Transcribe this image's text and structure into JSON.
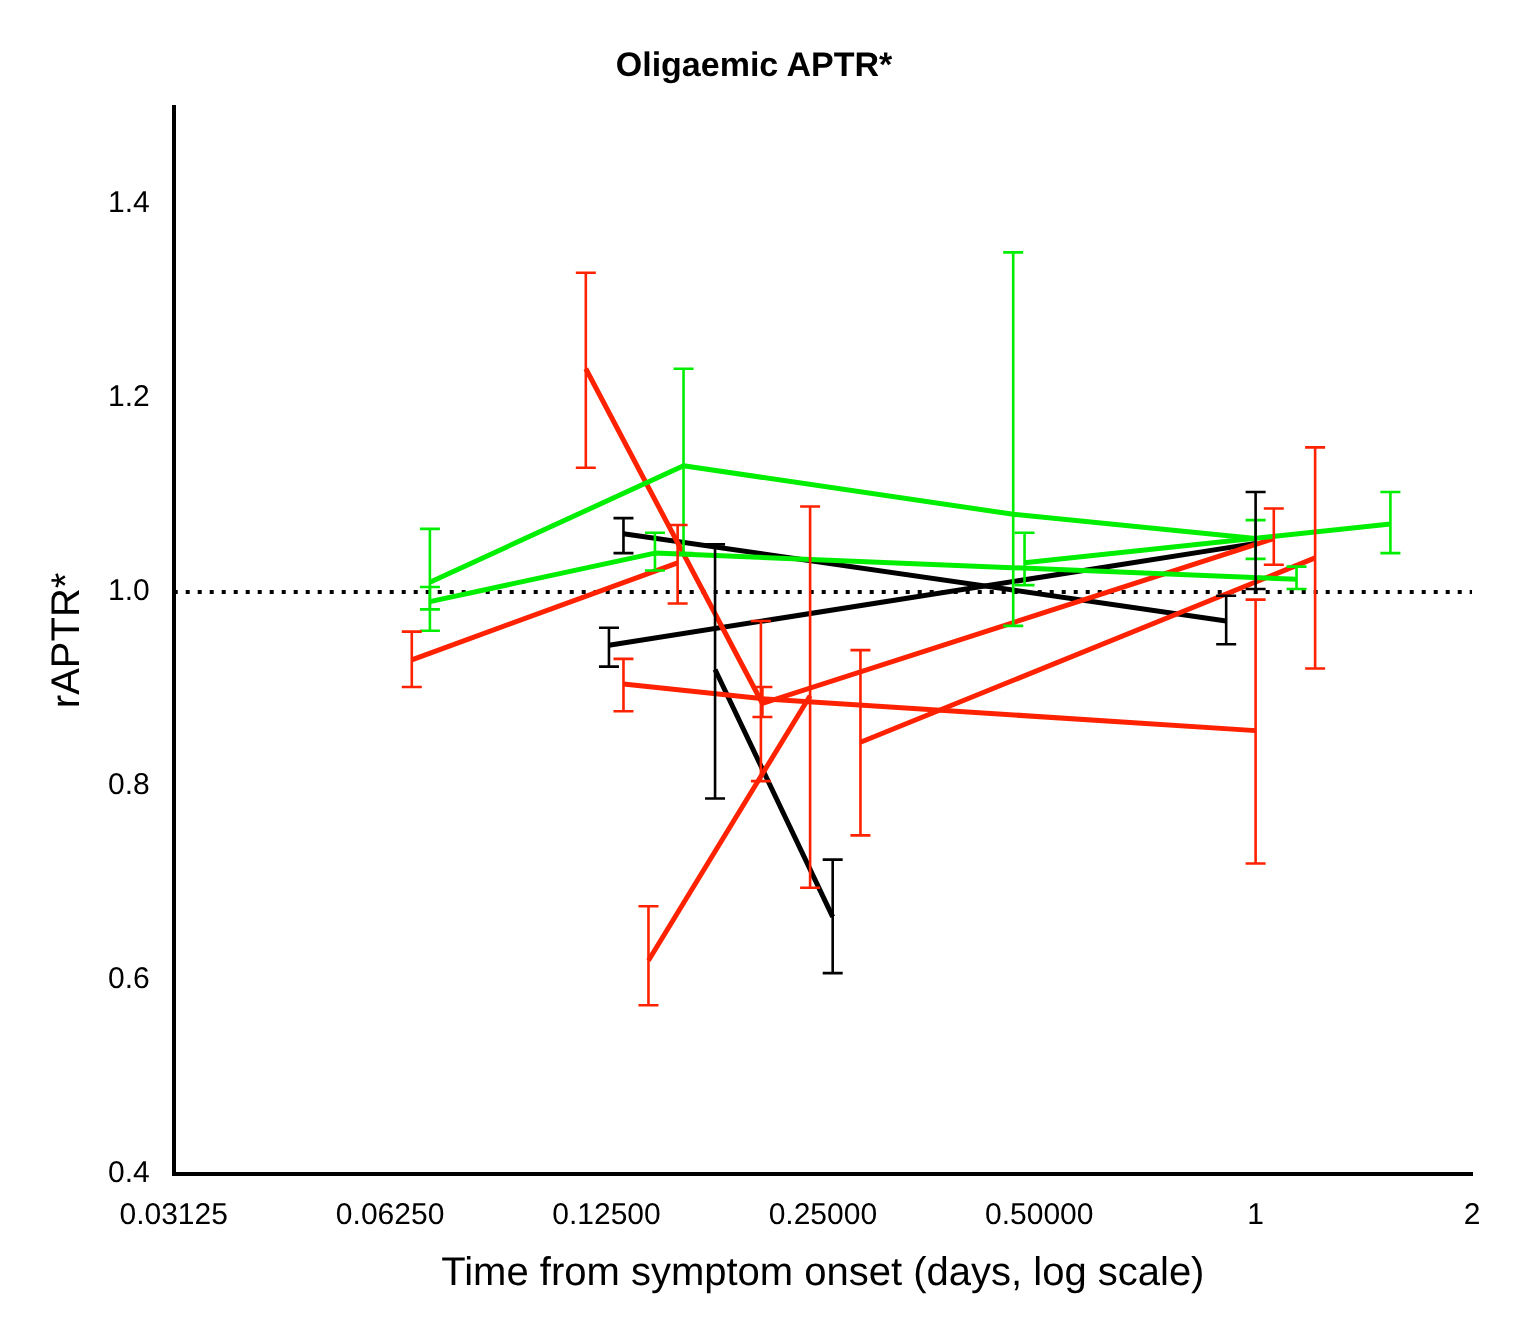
{
  "chart_data": {
    "type": "line",
    "title": "Oligaemic APTR*",
    "xlabel": "Time from symptom onset (days, log scale)",
    "ylabel": "rAPTR*",
    "log": "x",
    "xlim": [
      0.03125,
      2
    ],
    "xticks": [
      0.03125,
      {
        "value": 0.0625,
        "label": "0.06250"
      },
      {
        "value": 0.125,
        "label": "0.12500"
      },
      {
        "value": 0.25,
        "label": "0.25000"
      },
      {
        "value": 0.5,
        "label": "0.50000"
      },
      1,
      2
    ],
    "ylim": [
      0.4,
      1.5
    ],
    "yticks": [
      0.4,
      0.6,
      0.8,
      {
        "value": 1,
        "label": "1.0"
      },
      1.2,
      1.4
    ],
    "grid": false,
    "legend": false,
    "line_style": "solid",
    "ref_lines": [
      {
        "axis": "y",
        "value": 1,
        "color": "#000000",
        "line_style": "dotted"
      }
    ],
    "series": [
      {
        "color": "#00ee00",
        "x": [
          0.071,
          0.16,
          0.46,
          1.0
        ],
        "values": [
          1.01,
          1.13,
          1.08,
          1.055
        ],
        "errors": [
          [
            0.96,
            1.065
          ],
          [
            1.04,
            1.23
          ],
          [
            0.965,
            1.35
          ],
          [
            1.034,
            1.074
          ]
        ]
      },
      {
        "color": "#00ee00",
        "x": [
          0.071,
          0.146,
          1.14
        ],
        "values": [
          0.99,
          1.04,
          1.013
        ],
        "errors": [
          [
            0.982,
            1.005
          ],
          [
            1.022,
            1.061
          ],
          [
            1.003,
            1.026
          ]
        ]
      },
      {
        "color": "#00ee00",
        "x": [
          0.477,
          1.54
        ],
        "values": [
          1.03,
          1.07
        ],
        "errors": [
          [
            1.007,
            1.061
          ],
          [
            1.04,
            1.103
          ]
        ]
      },
      {
        "color": "#ff2200",
        "x": [
          0.067,
          0.157
        ],
        "values": [
          0.93,
          1.03
        ],
        "errors": [
          [
            0.902,
            0.959
          ],
          [
            0.988,
            1.069
          ]
        ]
      },
      {
        "color": "#ff2200",
        "x": [
          0.117,
          0.206,
          1.06
        ],
        "values": [
          1.23,
          0.885,
          1.055
        ],
        "errors": [
          [
            1.128,
            1.329
          ],
          [
            0.871,
            0.902
          ],
          [
            1.028,
            1.086
          ]
        ]
      },
      {
        "color": "#ff2200",
        "x": [
          0.132,
          0.205,
          1.0
        ],
        "values": [
          0.905,
          0.89,
          0.857
        ],
        "errors": [
          [
            0.877,
            0.931
          ],
          [
            0.805,
            0.97
          ],
          [
            0.72,
            0.992
          ]
        ]
      },
      {
        "color": "#ff2200",
        "x": [
          0.143,
          0.24
        ],
        "values": [
          0.62,
          0.893
        ],
        "errors": [
          [
            0.574,
            0.676
          ],
          [
            0.695,
            1.088
          ]
        ]
      },
      {
        "color": "#ff2200",
        "x": [
          0.282,
          1.21
        ],
        "values": [
          0.845,
          1.035
        ],
        "errors": [
          [
            0.749,
            0.94
          ],
          [
            0.921,
            1.149
          ]
        ]
      },
      {
        "color": "#000000",
        "x": [
          0.132,
          0.91
        ],
        "values": [
          1.06,
          0.97
        ],
        "errors": [
          [
            1.04,
            1.076
          ],
          [
            0.946,
            0.996
          ]
        ]
      },
      {
        "color": "#000000",
        "x": [
          0.126,
          1.0
        ],
        "values": [
          0.945,
          1.05
        ],
        "errors": [
          [
            0.923,
            0.963
          ],
          [
            1.003,
            1.103
          ]
        ]
      },
      {
        "color": "#000000",
        "x": [
          0.177,
          0.258
        ],
        "values": [
          0.92,
          0.665
        ],
        "errors": [
          [
            0.787,
            1.049
          ],
          [
            0.607,
            0.724
          ]
        ]
      }
    ]
  }
}
